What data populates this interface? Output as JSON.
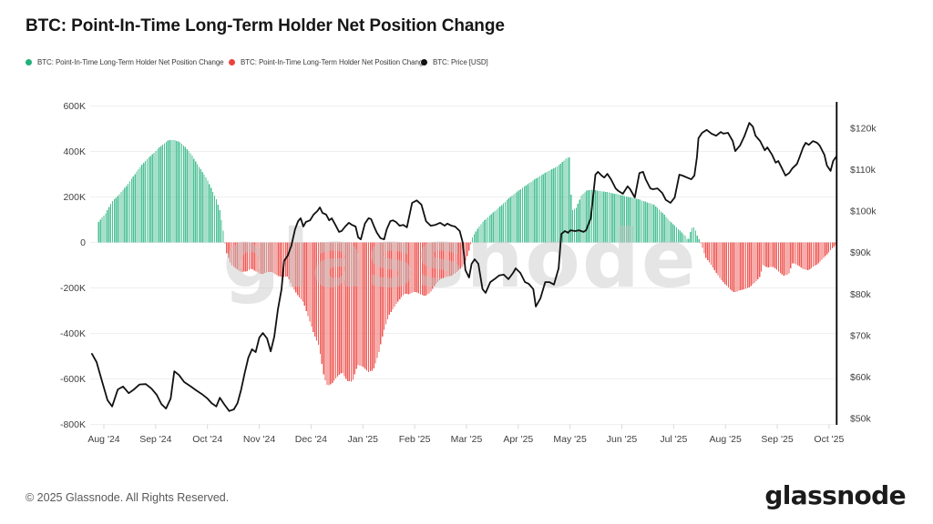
{
  "header": {
    "title": "BTC: Point-In-Time Long-Term Holder Net Position Change"
  },
  "legend": [
    {
      "label": "BTC: Point-In-Time Long-Term Holder Net Position Change",
      "color": "#21b17c"
    },
    {
      "label": "BTC: Point-In-Time Long-Term Holder Net Position Change",
      "color": "#e9443f"
    },
    {
      "label": "BTC: Price [USD]",
      "color": "#111111"
    }
  ],
  "watermark": "glassnode",
  "footer": {
    "copyright": "© 2025 Glassnode. All Rights Reserved.",
    "brand": "glassnode"
  },
  "chart_data": {
    "type": "bar+line",
    "title": "BTC: Point-In-Time Long-Term Holder Net Position Change",
    "legend_position": "top-left",
    "grid": "horizontal-only",
    "x_axis": {
      "labels": [
        "Aug '24",
        "Sep '24",
        "Oct '24",
        "Nov '24",
        "Dec '24",
        "Jan '25",
        "Feb '25",
        "Mar '25",
        "Apr '25",
        "May '25",
        "Jun '25",
        "Jul '25",
        "Aug '25",
        "Sep '25",
        "Oct '25"
      ],
      "note": "t = months since Aug 2024 tick"
    },
    "y_left": {
      "unit": "BTC (thousands)",
      "ticks": [
        600,
        400,
        200,
        0,
        -200,
        -400,
        -600,
        -800
      ],
      "tick_labels": [
        "600K",
        "400K",
        "200K",
        "0",
        "-200K",
        "-400K",
        "-600K",
        "-800K"
      ],
      "range": [
        -800,
        600
      ]
    },
    "y_right": {
      "unit": "USD (thousands)",
      "ticks": [
        120,
        110,
        100,
        90,
        80,
        70,
        60,
        50
      ],
      "tick_labels": [
        "$120k",
        "$110k",
        "$100k",
        "$90k",
        "$80k",
        "$70k",
        "$60k",
        "$50k"
      ],
      "range_k": [
        50,
        126
      ]
    },
    "series": [
      {
        "name": "BTC: Point-In-Time Long-Term Holder Net Position Change",
        "type": "bar",
        "sign": "positive",
        "color": "#4cc096"
      },
      {
        "name": "BTC: Point-In-Time Long-Term Holder Net Position Change",
        "type": "bar",
        "sign": "negative",
        "color": "#ee5a56"
      },
      {
        "name": "BTC: Price [USD]",
        "type": "line",
        "color": "#111111"
      }
    ],
    "net_position_change_envelope_kbtc": [
      [
        -0.1,
        90
      ],
      [
        0.04,
        130
      ],
      [
        0.16,
        180
      ],
      [
        0.3,
        212
      ],
      [
        0.44,
        250
      ],
      [
        0.57,
        290
      ],
      [
        0.69,
        330
      ],
      [
        0.83,
        365
      ],
      [
        0.94,
        388
      ],
      [
        1.04,
        412
      ],
      [
        1.15,
        432
      ],
      [
        1.25,
        450
      ],
      [
        1.36,
        450
      ],
      [
        1.47,
        440
      ],
      [
        1.57,
        420
      ],
      [
        1.68,
        390
      ],
      [
        1.78,
        352
      ],
      [
        1.89,
        315
      ],
      [
        2.0,
        275
      ],
      [
        2.08,
        235
      ],
      [
        2.17,
        190
      ],
      [
        2.24,
        140
      ],
      [
        2.3,
        60
      ],
      [
        2.36,
        -40
      ],
      [
        2.45,
        -95
      ],
      [
        2.55,
        -115
      ],
      [
        2.65,
        -130
      ],
      [
        2.75,
        -128
      ],
      [
        2.85,
        -115
      ],
      [
        2.95,
        -130
      ],
      [
        3.05,
        -140
      ],
      [
        3.15,
        -130
      ],
      [
        3.25,
        -130
      ],
      [
        3.35,
        -146
      ],
      [
        3.45,
        -152
      ],
      [
        3.55,
        -150
      ],
      [
        3.65,
        -200
      ],
      [
        3.75,
        -235
      ],
      [
        3.85,
        -262
      ],
      [
        3.95,
        -330
      ],
      [
        4.05,
        -400
      ],
      [
        4.15,
        -455
      ],
      [
        4.25,
        -590
      ],
      [
        4.32,
        -632
      ],
      [
        4.4,
        -620
      ],
      [
        4.5,
        -592
      ],
      [
        4.6,
        -570
      ],
      [
        4.7,
        -610
      ],
      [
        4.8,
        -612
      ],
      [
        4.9,
        -538
      ],
      [
        5.0,
        -546
      ],
      [
        5.1,
        -570
      ],
      [
        5.2,
        -562
      ],
      [
        5.3,
        -492
      ],
      [
        5.4,
        -392
      ],
      [
        5.5,
        -322
      ],
      [
        5.6,
        -286
      ],
      [
        5.7,
        -252
      ],
      [
        5.8,
        -226
      ],
      [
        5.9,
        -228
      ],
      [
        6.0,
        -216
      ],
      [
        6.1,
        -226
      ],
      [
        6.2,
        -236
      ],
      [
        6.3,
        -220
      ],
      [
        6.4,
        -186
      ],
      [
        6.5,
        -162
      ],
      [
        6.6,
        -152
      ],
      [
        6.7,
        -148
      ],
      [
        6.8,
        -132
      ],
      [
        6.9,
        -112
      ],
      [
        6.96,
        -92
      ],
      [
        7.02,
        -56
      ],
      [
        7.07,
        -18
      ],
      [
        7.12,
        26
      ],
      [
        7.22,
        62
      ],
      [
        7.32,
        92
      ],
      [
        7.42,
        112
      ],
      [
        7.52,
        132
      ],
      [
        7.62,
        152
      ],
      [
        7.72,
        172
      ],
      [
        7.82,
        196
      ],
      [
        7.92,
        212
      ],
      [
        8.02,
        230
      ],
      [
        8.12,
        246
      ],
      [
        8.22,
        262
      ],
      [
        8.32,
        278
      ],
      [
        8.42,
        292
      ],
      [
        8.52,
        306
      ],
      [
        8.62,
        318
      ],
      [
        8.72,
        330
      ],
      [
        8.82,
        346
      ],
      [
        8.88,
        360
      ],
      [
        8.94,
        372
      ],
      [
        8.99,
        375
      ],
      [
        9.03,
        140
      ],
      [
        9.12,
        152
      ],
      [
        9.22,
        206
      ],
      [
        9.32,
        228
      ],
      [
        9.42,
        232
      ],
      [
        9.52,
        228
      ],
      [
        9.62,
        224
      ],
      [
        9.72,
        222
      ],
      [
        9.82,
        216
      ],
      [
        9.92,
        212
      ],
      [
        10.02,
        206
      ],
      [
        10.12,
        200
      ],
      [
        10.22,
        196
      ],
      [
        10.32,
        190
      ],
      [
        10.42,
        182
      ],
      [
        10.52,
        174
      ],
      [
        10.62,
        166
      ],
      [
        10.72,
        145
      ],
      [
        10.82,
        122
      ],
      [
        10.92,
        95
      ],
      [
        11.02,
        74
      ],
      [
        11.12,
        52
      ],
      [
        11.22,
        30
      ],
      [
        11.28,
        8
      ],
      [
        11.34,
        62
      ],
      [
        11.4,
        68
      ],
      [
        11.46,
        28
      ],
      [
        11.5,
        8
      ],
      [
        11.54,
        -12
      ],
      [
        11.62,
        -68
      ],
      [
        11.72,
        -96
      ],
      [
        11.82,
        -132
      ],
      [
        11.92,
        -166
      ],
      [
        12.02,
        -190
      ],
      [
        12.09,
        -206
      ],
      [
        12.17,
        -220
      ],
      [
        12.27,
        -212
      ],
      [
        12.37,
        -206
      ],
      [
        12.47,
        -196
      ],
      [
        12.57,
        -176
      ],
      [
        12.67,
        -150
      ],
      [
        12.72,
        -100
      ],
      [
        12.82,
        -110
      ],
      [
        12.92,
        -106
      ],
      [
        13.02,
        -126
      ],
      [
        13.12,
        -146
      ],
      [
        13.22,
        -140
      ],
      [
        13.3,
        -88
      ],
      [
        13.4,
        -100
      ],
      [
        13.5,
        -116
      ],
      [
        13.6,
        -122
      ],
      [
        13.7,
        -106
      ],
      [
        13.8,
        -92
      ],
      [
        13.9,
        -66
      ],
      [
        14.0,
        -42
      ],
      [
        14.08,
        -22
      ],
      [
        14.14,
        -10
      ]
    ],
    "price_usd_k": [
      [
        -0.23,
        65.6
      ],
      [
        -0.14,
        63.6
      ],
      [
        -0.04,
        59.2
      ],
      [
        0.07,
        54.4
      ],
      [
        0.16,
        52.9
      ],
      [
        0.27,
        57.0
      ],
      [
        0.37,
        57.7
      ],
      [
        0.48,
        56.1
      ],
      [
        0.58,
        57.0
      ],
      [
        0.69,
        58.2
      ],
      [
        0.81,
        58.3
      ],
      [
        0.92,
        57.2
      ],
      [
        1.02,
        55.7
      ],
      [
        1.11,
        53.5
      ],
      [
        1.2,
        52.4
      ],
      [
        1.29,
        54.8
      ],
      [
        1.36,
        61.4
      ],
      [
        1.45,
        60.5
      ],
      [
        1.55,
        58.8
      ],
      [
        1.68,
        57.7
      ],
      [
        1.78,
        56.8
      ],
      [
        1.89,
        55.9
      ],
      [
        2.0,
        54.8
      ],
      [
        2.08,
        53.7
      ],
      [
        2.17,
        52.9
      ],
      [
        2.24,
        55.0
      ],
      [
        2.33,
        53.3
      ],
      [
        2.42,
        51.8
      ],
      [
        2.51,
        52.2
      ],
      [
        2.58,
        53.7
      ],
      [
        2.65,
        57.0
      ],
      [
        2.72,
        61.0
      ],
      [
        2.79,
        64.7
      ],
      [
        2.86,
        66.7
      ],
      [
        2.93,
        66.0
      ],
      [
        3.0,
        69.5
      ],
      [
        3.07,
        70.6
      ],
      [
        3.15,
        69.3
      ],
      [
        3.22,
        66.2
      ],
      [
        3.29,
        69.7
      ],
      [
        3.36,
        76.3
      ],
      [
        3.43,
        81.2
      ],
      [
        3.48,
        88.0
      ],
      [
        3.55,
        89.3
      ],
      [
        3.62,
        91.7
      ],
      [
        3.69,
        95.6
      ],
      [
        3.75,
        97.6
      ],
      [
        3.8,
        98.3
      ],
      [
        3.85,
        96.3
      ],
      [
        3.9,
        97.4
      ],
      [
        3.98,
        97.8
      ],
      [
        4.05,
        99.2
      ],
      [
        4.12,
        100.0
      ],
      [
        4.17,
        100.9
      ],
      [
        4.22,
        99.6
      ],
      [
        4.29,
        99.2
      ],
      [
        4.35,
        97.8
      ],
      [
        4.4,
        98.3
      ],
      [
        4.47,
        96.7
      ],
      [
        4.54,
        95.0
      ],
      [
        4.59,
        95.2
      ],
      [
        4.66,
        96.3
      ],
      [
        4.73,
        97.2
      ],
      [
        4.79,
        96.7
      ],
      [
        4.86,
        96.3
      ],
      [
        4.91,
        93.7
      ],
      [
        4.96,
        93.2
      ],
      [
        5.04,
        97.0
      ],
      [
        5.11,
        98.3
      ],
      [
        5.16,
        98.1
      ],
      [
        5.21,
        96.5
      ],
      [
        5.27,
        94.8
      ],
      [
        5.34,
        93.5
      ],
      [
        5.41,
        93.2
      ],
      [
        5.46,
        95.6
      ],
      [
        5.53,
        97.6
      ],
      [
        5.58,
        97.8
      ],
      [
        5.64,
        97.4
      ],
      [
        5.71,
        96.5
      ],
      [
        5.78,
        96.7
      ],
      [
        5.85,
        96.1
      ],
      [
        5.95,
        102.0
      ],
      [
        6.04,
        102.6
      ],
      [
        6.13,
        101.6
      ],
      [
        6.22,
        97.6
      ],
      [
        6.31,
        96.5
      ],
      [
        6.4,
        96.7
      ],
      [
        6.49,
        97.2
      ],
      [
        6.58,
        96.5
      ],
      [
        6.63,
        97.0
      ],
      [
        6.71,
        96.5
      ],
      [
        6.78,
        96.3
      ],
      [
        6.87,
        95.2
      ],
      [
        6.93,
        92.3
      ],
      [
        6.98,
        85.8
      ],
      [
        7.05,
        84.0
      ],
      [
        7.1,
        87.3
      ],
      [
        7.16,
        88.4
      ],
      [
        7.23,
        87.3
      ],
      [
        7.31,
        81.2
      ],
      [
        7.37,
        80.3
      ],
      [
        7.46,
        82.9
      ],
      [
        7.54,
        83.6
      ],
      [
        7.63,
        84.5
      ],
      [
        7.72,
        84.7
      ],
      [
        7.81,
        83.6
      ],
      [
        7.9,
        85.1
      ],
      [
        7.95,
        86.2
      ],
      [
        8.04,
        85.1
      ],
      [
        8.13,
        82.9
      ],
      [
        8.2,
        82.5
      ],
      [
        8.29,
        81.2
      ],
      [
        8.34,
        77.0
      ],
      [
        8.43,
        79.0
      ],
      [
        8.52,
        82.9
      ],
      [
        8.6,
        82.9
      ],
      [
        8.69,
        82.3
      ],
      [
        8.78,
        86.2
      ],
      [
        8.83,
        94.5
      ],
      [
        8.9,
        95.2
      ],
      [
        8.96,
        94.8
      ],
      [
        9.01,
        95.4
      ],
      [
        9.1,
        95.2
      ],
      [
        9.17,
        95.4
      ],
      [
        9.26,
        95.0
      ],
      [
        9.31,
        95.4
      ],
      [
        9.4,
        98.3
      ],
      [
        9.49,
        108.8
      ],
      [
        9.54,
        109.5
      ],
      [
        9.61,
        108.6
      ],
      [
        9.66,
        108.1
      ],
      [
        9.72,
        109.0
      ],
      [
        9.79,
        107.7
      ],
      [
        9.88,
        105.5
      ],
      [
        9.93,
        104.9
      ],
      [
        10.02,
        104.2
      ],
      [
        10.11,
        106.0
      ],
      [
        10.16,
        105.3
      ],
      [
        10.25,
        103.3
      ],
      [
        10.34,
        109.2
      ],
      [
        10.41,
        109.5
      ],
      [
        10.46,
        107.7
      ],
      [
        10.55,
        105.5
      ],
      [
        10.6,
        105.3
      ],
      [
        10.69,
        105.5
      ],
      [
        10.78,
        104.4
      ],
      [
        10.85,
        102.7
      ],
      [
        10.94,
        102.0
      ],
      [
        11.02,
        103.3
      ],
      [
        11.11,
        108.8
      ],
      [
        11.17,
        108.6
      ],
      [
        11.26,
        108.1
      ],
      [
        11.34,
        107.7
      ],
      [
        11.4,
        108.6
      ],
      [
        11.45,
        113.0
      ],
      [
        11.48,
        117.6
      ],
      [
        11.55,
        118.9
      ],
      [
        11.64,
        119.6
      ],
      [
        11.73,
        118.7
      ],
      [
        11.82,
        118.2
      ],
      [
        11.91,
        119.1
      ],
      [
        11.96,
        118.7
      ],
      [
        12.05,
        118.9
      ],
      [
        12.14,
        116.9
      ],
      [
        12.19,
        114.5
      ],
      [
        12.28,
        115.8
      ],
      [
        12.37,
        118.2
      ],
      [
        12.46,
        121.3
      ],
      [
        12.53,
        120.4
      ],
      [
        12.58,
        118.2
      ],
      [
        12.67,
        116.9
      ],
      [
        12.76,
        114.7
      ],
      [
        12.81,
        115.4
      ],
      [
        12.9,
        113.6
      ],
      [
        12.97,
        111.7
      ],
      [
        13.02,
        112.1
      ],
      [
        13.08,
        110.6
      ],
      [
        13.16,
        108.6
      ],
      [
        13.23,
        109.2
      ],
      [
        13.29,
        110.3
      ],
      [
        13.38,
        111.4
      ],
      [
        13.43,
        113.0
      ],
      [
        13.5,
        115.4
      ],
      [
        13.55,
        116.5
      ],
      [
        13.61,
        116.0
      ],
      [
        13.69,
        116.9
      ],
      [
        13.77,
        116.5
      ],
      [
        13.82,
        115.8
      ],
      [
        13.91,
        113.6
      ],
      [
        13.96,
        111.0
      ],
      [
        14.03,
        109.7
      ],
      [
        14.08,
        112.1
      ],
      [
        14.14,
        113.2
      ]
    ]
  }
}
